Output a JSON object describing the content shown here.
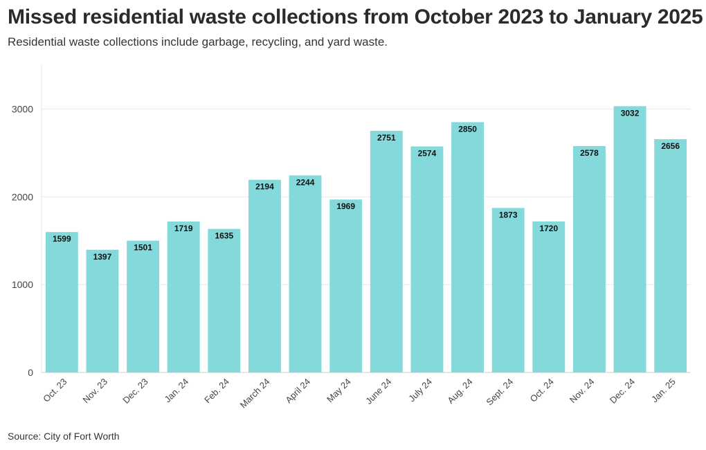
{
  "header": {
    "title": "Missed residential waste collections from October 2023 to January 2025",
    "subtitle": "Residential waste collections include garbage, recycling, and yard waste."
  },
  "footer": {
    "source": "Source: City of Fort Worth"
  },
  "colors": {
    "bar": "#84d9db",
    "grid": "#e8e8e8",
    "axis": "#cccccc"
  },
  "chart_data": {
    "type": "bar",
    "title": "Missed residential waste collections from October 2023 to January 2025",
    "xlabel": "",
    "ylabel": "",
    "ylim": [
      0,
      3500
    ],
    "yticks": [
      0,
      1000,
      2000,
      3000
    ],
    "grid": true,
    "categories": [
      "Oct. 23",
      "Nov. 23",
      "Dec. 23",
      "Jan. 24",
      "Feb. 24",
      "March 24",
      "April 24",
      "May 24",
      "June 24",
      "July 24",
      "Aug. 24",
      "Sept. 24",
      "Oct. 24",
      "Nov. 24",
      "Dec. 24",
      "Jan. 25"
    ],
    "values": [
      1599,
      1397,
      1501,
      1719,
      1635,
      2194,
      2244,
      1969,
      2751,
      2574,
      2850,
      1873,
      1720,
      2578,
      3032,
      2656
    ]
  }
}
